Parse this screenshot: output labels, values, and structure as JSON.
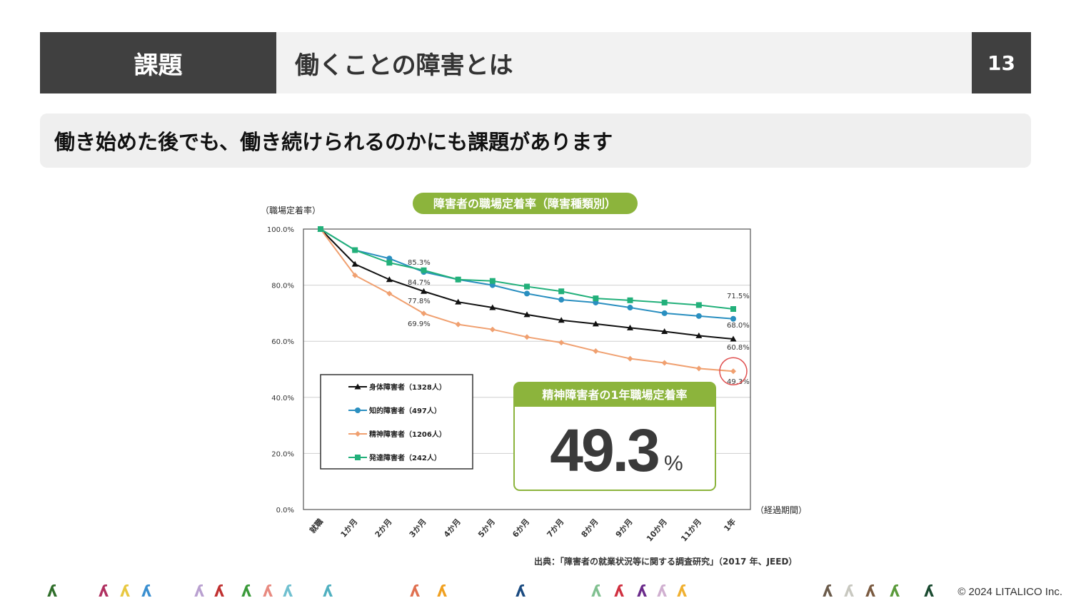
{
  "header": {
    "label": "課題",
    "title": "働くことの障害とは",
    "page_number": "13"
  },
  "subtitle": "働き始めた後でも、働き続けられるのかにも課題があります",
  "chart_data": {
    "type": "line",
    "title": "障害者の職場定着率（障害種類別）",
    "ylabel": "（職場定着率）",
    "xlabel": "（経過期間）",
    "ylim": [
      0,
      100
    ],
    "yticks": [
      "0.0%",
      "20.0%",
      "40.0%",
      "60.0%",
      "80.0%",
      "100.0%"
    ],
    "categories": [
      "就職",
      "1か月",
      "2か月",
      "3か月",
      "4か月",
      "5か月",
      "6か月",
      "7か月",
      "8か月",
      "9か月",
      "10か月",
      "11か月",
      "1年"
    ],
    "series": [
      {
        "name": "身体障害者（1328人）",
        "color": "#111111",
        "marker": "triangle",
        "values": [
          100,
          87.5,
          82,
          77.8,
          74,
          72,
          69.5,
          67.5,
          66.2,
          64.8,
          63.5,
          62,
          60.8
        ]
      },
      {
        "name": "知的障害者（497人）",
        "color": "#2a8fc0",
        "marker": "circle",
        "values": [
          100,
          92.5,
          89.5,
          84.7,
          82,
          80,
          77,
          74.8,
          73.8,
          72,
          70,
          69,
          68.0
        ]
      },
      {
        "name": "精神障害者（1206人）",
        "color": "#f0a070",
        "marker": "diamond",
        "values": [
          100,
          83.5,
          77,
          69.9,
          66,
          64.2,
          61.5,
          59.5,
          56.5,
          53.8,
          52.3,
          50.3,
          49.3
        ]
      },
      {
        "name": "発達障害者（242人）",
        "color": "#22b07a",
        "marker": "square",
        "values": [
          100,
          92.5,
          88,
          85.3,
          82,
          81.5,
          79.5,
          77.8,
          75.3,
          74.6,
          73.8,
          72.9,
          71.5
        ]
      }
    ],
    "annotations": [
      "85.3%",
      "84.7%",
      "77.8%",
      "69.9%",
      "71.5%",
      "68.0%",
      "60.8%",
      "49.3%"
    ],
    "legend_position": "lower-left",
    "highlight": {
      "title": "精神障害者の1年職場定着率",
      "value": "49.3",
      "unit": "%"
    },
    "grid": true,
    "source": "出典：「障害者の就業状況等に関する調査研究」（2017 年、JEED）"
  },
  "footer": {
    "copyright": "© 2024 LITALICO Inc.",
    "icons": [
      {
        "color": "#2f6e2a"
      },
      {
        "color": "#b03060"
      },
      {
        "color": "#e8c840"
      },
      {
        "color": "#3a8fd0"
      },
      {
        "color": "#b9a0d0"
      },
      {
        "color": "#c03030"
      },
      {
        "color": "#3a9a3a"
      },
      {
        "color": "#e88a80"
      },
      {
        "color": "#70c0d0"
      },
      {
        "color": "#50b0c0"
      },
      {
        "color": "#e07050"
      },
      {
        "color": "#f0a020"
      },
      {
        "color": "#1a4a80"
      },
      {
        "color": "#80c090"
      },
      {
        "color": "#d03040"
      },
      {
        "color": "#6a2a8a"
      },
      {
        "color": "#d0b0d0"
      },
      {
        "color": "#f0b030"
      },
      {
        "color": "#6a5a4a"
      },
      {
        "color": "#c8c8c0"
      },
      {
        "color": "#7a5a40"
      },
      {
        "color": "#5a9a3a"
      },
      {
        "color": "#1a4a30"
      }
    ]
  }
}
